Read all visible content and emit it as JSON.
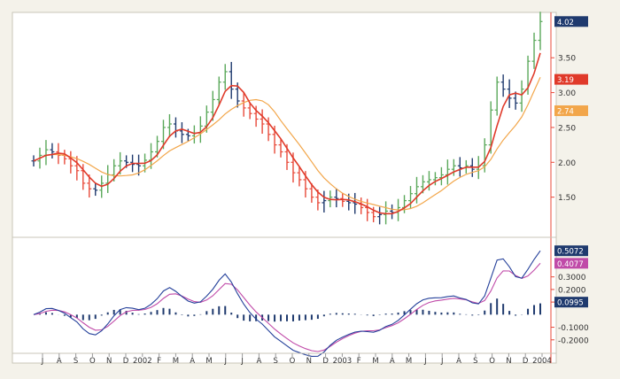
{
  "colors": {
    "page": "#f4f2ea",
    "panel": "#ffffff",
    "axis": "#e84a3a",
    "bar_up": "#5aa85a",
    "bar_down": "#e84a3a",
    "bar_neutral": "#1f3a6e",
    "ma_fast": "#e03a2a",
    "ma_slow": "#f2a64a",
    "macd_line": "#24409a",
    "signal_line": "#c04aa8",
    "histogram": "#1f3a6e",
    "label_last": "#1f3a6e",
    "label_fast": "#e03a2a",
    "label_slow": "#f2a64a",
    "label_macd": "#1f3a6e",
    "label_signal": "#c04aa8",
    "label_hist": "#1f3a6e"
  },
  "chart_data": [
    {
      "type": "ohlc",
      "ylim": [
        1.0,
        4.1
      ],
      "y_ticks": [
        "1.50",
        "2.00",
        "2.50",
        "3.00",
        "3.50"
      ],
      "y_tick_values": [
        1.5,
        2.0,
        2.5,
        3.0,
        3.5
      ],
      "x_tick_labels": [
        "J",
        "A",
        "S",
        "O",
        "N",
        "D",
        "2002",
        "F",
        "M",
        "A",
        "M",
        "J",
        "J",
        "A",
        "S",
        "O",
        "N",
        "D",
        "2003",
        "F",
        "M",
        "A",
        "M",
        "J",
        "J",
        "A",
        "S",
        "O",
        "N",
        "D",
        "2004"
      ],
      "close": [
        2.02,
        2.1,
        2.18,
        2.15,
        2.1,
        2.05,
        1.95,
        1.88,
        1.7,
        1.62,
        1.6,
        1.7,
        1.82,
        1.95,
        2.02,
        2.0,
        1.97,
        1.95,
        2.03,
        2.15,
        2.3,
        2.5,
        2.55,
        2.45,
        2.4,
        2.38,
        2.42,
        2.52,
        2.72,
        2.9,
        3.15,
        3.3,
        3.05,
        2.88,
        2.78,
        2.7,
        2.62,
        2.55,
        2.4,
        2.25,
        2.15,
        2.0,
        1.85,
        1.75,
        1.62,
        1.5,
        1.42,
        1.45,
        1.5,
        1.48,
        1.44,
        1.42,
        1.4,
        1.35,
        1.28,
        1.22,
        1.25,
        1.3,
        1.28,
        1.35,
        1.45,
        1.55,
        1.65,
        1.72,
        1.75,
        1.78,
        1.82,
        1.9,
        1.95,
        1.92,
        1.95,
        1.9,
        1.95,
        2.25,
        2.75,
        3.15,
        3.05,
        2.92,
        2.85,
        3.05,
        3.45,
        3.75,
        4.02
      ],
      "last_value": "4.02",
      "ma_fast_label": "3.19",
      "ma_slow_label": "2.74",
      "last_value_num": 4.02,
      "ma_fast_label_num": 3.19,
      "ma_slow_label_num": 2.74,
      "ma_fast_period": 4,
      "ma_slow_period": 9
    },
    {
      "type": "macd",
      "ylim": [
        -0.3,
        0.6
      ],
      "y_ticks": [
        "0.3000",
        "0.2000",
        "0.1000",
        "-0.1000",
        "-0.2000"
      ],
      "y_tick_values": [
        0.3,
        0.2,
        0.1,
        -0.1,
        -0.2
      ],
      "macd_label": "0.5072",
      "signal_label": "0.4077",
      "histogram_label": "0.0995",
      "macd_label_num": 0.5072,
      "signal_label_num": 0.4077,
      "histogram_label_num": 0.0995
    }
  ]
}
